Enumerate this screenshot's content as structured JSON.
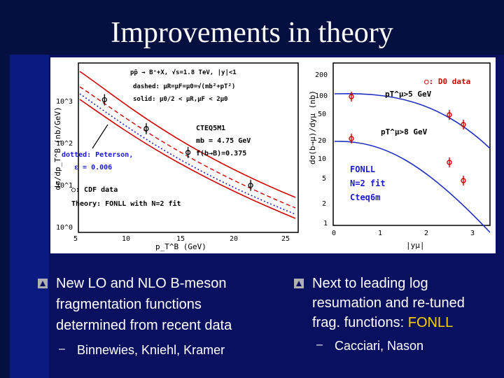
{
  "slide": {
    "title": "Improvements in theory",
    "bullets_left": {
      "text": "New LO and NLO B-meson fragmentation functions determined from recent data",
      "line1": "New LO and NLO B-meson",
      "line2": "fragmentation functions",
      "line3": "determined from recent data",
      "sub": "Binnewies, Kniehl, Kramer"
    },
    "bullets_right": {
      "line1": "Next to leading log",
      "line2": "resumation and re-tuned",
      "line3_prefix": "frag. functions: ",
      "line3_highlight": "FONLL",
      "sub": "Cacciari, Nason"
    },
    "colors": {
      "background": "#0a1060",
      "highlight": "#ffd000",
      "bullet": "#b0b0b0"
    }
  },
  "left_plot": {
    "ylabel": "dσ/dp_T^B (nb/GeV)",
    "xlabel": "p_T^B (GeV)",
    "yticks": [
      "10^3",
      "10^2",
      "10^1",
      "10^0"
    ],
    "xticks": [
      "5",
      "10",
      "15",
      "20",
      "25"
    ],
    "annot": {
      "process": "pp̄ → B⁺+X, √s=1.8 TeV, |y|<1",
      "dashed": "dashed: μR=μF=μ0=√(mb²+pT²)",
      "solid": "solid: μ0/2 < μR,μF < 2μ0",
      "pdf": "CTEQ5M1",
      "mb": "mb = 4.75 GeV",
      "frac": "f(b→B)=0.375",
      "dotted": "dotted: Peterson,",
      "eps": "ε = 0.006",
      "cdf": "○: CDF data",
      "theory": "Theory: FONLL with N=2 fit"
    },
    "data_points": [
      {
        "x": 7.5,
        "y": 660
      },
      {
        "x": 11.5,
        "y": 160
      },
      {
        "x": 15.5,
        "y": 50
      },
      {
        "x": 21.5,
        "y": 10
      }
    ]
  },
  "right_plot": {
    "ylabel": "dσ(b→μ)/dyμ (nb)",
    "xlabel": "|yμ|",
    "yticks": [
      "200",
      "100",
      "50",
      "20",
      "10",
      "5",
      "2",
      "1"
    ],
    "xticks": [
      "0",
      "1",
      "2",
      "3"
    ],
    "annot": {
      "d0": "○: D0 data",
      "pt5": "pT^μ>5 GeV",
      "pt8": "pT^μ>8 GeV",
      "fonll": "FONLL",
      "fit": "N=2 fit",
      "cteq": "Cteq6m"
    }
  }
}
